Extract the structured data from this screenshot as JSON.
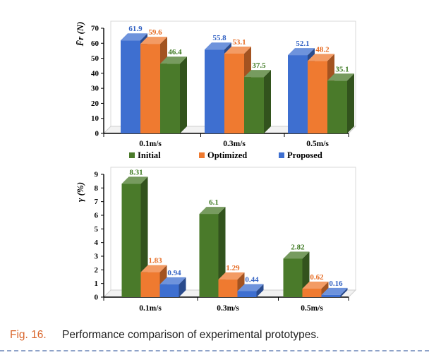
{
  "colors": {
    "initial": "#4a7a2a",
    "optimized": "#ef7a30",
    "proposed": "#3e6fd0",
    "initial_label": "#3e7a22",
    "optimized_label": "#e66b22",
    "proposed_label": "#3564c4",
    "caption_fignum": "#d9652b"
  },
  "caption": {
    "fig_number": "Fig. 16.",
    "text": "Performance comparison of experimental prototypes."
  },
  "chart_data": [
    {
      "type": "bar",
      "ylabel": "F̄r (N)",
      "ylim": [
        0,
        70
      ],
      "yticks": [
        0,
        10,
        20,
        30,
        40,
        50,
        60,
        70
      ],
      "categories": [
        "0.1m/s",
        "0.3m/s",
        "0.5m/s"
      ],
      "series": [
        {
          "name": "Proposed",
          "values": [
            61.9,
            55.8,
            52.1
          ]
        },
        {
          "name": "Optimized",
          "values": [
            59.6,
            53.1,
            48.2
          ]
        },
        {
          "name": "Initial",
          "values": [
            46.4,
            37.5,
            35.1
          ]
        }
      ],
      "legend": [
        "Initial",
        "Optimized",
        "Proposed"
      ],
      "legend_position": "bottom",
      "grid": false
    },
    {
      "type": "bar",
      "ylabel": "γ (%)",
      "ylim": [
        0,
        9
      ],
      "yticks": [
        0,
        1,
        2,
        3,
        4,
        5,
        6,
        7,
        8,
        9
      ],
      "categories": [
        "0.1m/s",
        "0.3m/s",
        "0.5m/s"
      ],
      "series": [
        {
          "name": "Initial",
          "values": [
            8.31,
            6.1,
            2.82
          ]
        },
        {
          "name": "Optimized",
          "values": [
            1.83,
            1.29,
            0.62
          ]
        },
        {
          "name": "Proposed",
          "values": [
            0.94,
            0.44,
            0.16
          ]
        }
      ],
      "grid": false
    }
  ]
}
